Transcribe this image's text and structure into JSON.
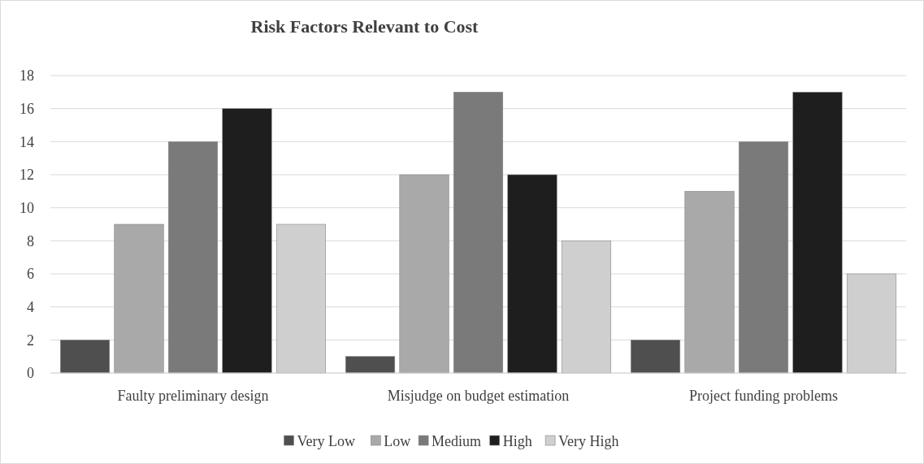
{
  "chart_data": {
    "type": "bar",
    "title": "Risk Factors Relevant to Cost",
    "categories": [
      "Faulty preliminary design",
      "Misjudge on budget estimation",
      "Project funding problems"
    ],
    "series": [
      {
        "name": "Very Low",
        "color": "#4f4f4f",
        "values": [
          2,
          1,
          2
        ]
      },
      {
        "name": "Low",
        "color": "#a9a9a9",
        "values": [
          9,
          12,
          11
        ]
      },
      {
        "name": "Medium",
        "color": "#7a7a7a",
        "values": [
          14,
          17,
          14
        ]
      },
      {
        "name": "High",
        "color": "#1e1e1e",
        "values": [
          16,
          12,
          17
        ]
      },
      {
        "name": "Very High",
        "color": "#cfcfcf",
        "values": [
          9,
          8,
          6
        ]
      }
    ],
    "ylim": [
      0,
      18
    ],
    "yticks": [
      0,
      2,
      4,
      6,
      8,
      10,
      12,
      14,
      16,
      18
    ],
    "grid": "y",
    "legend": "bottom"
  }
}
